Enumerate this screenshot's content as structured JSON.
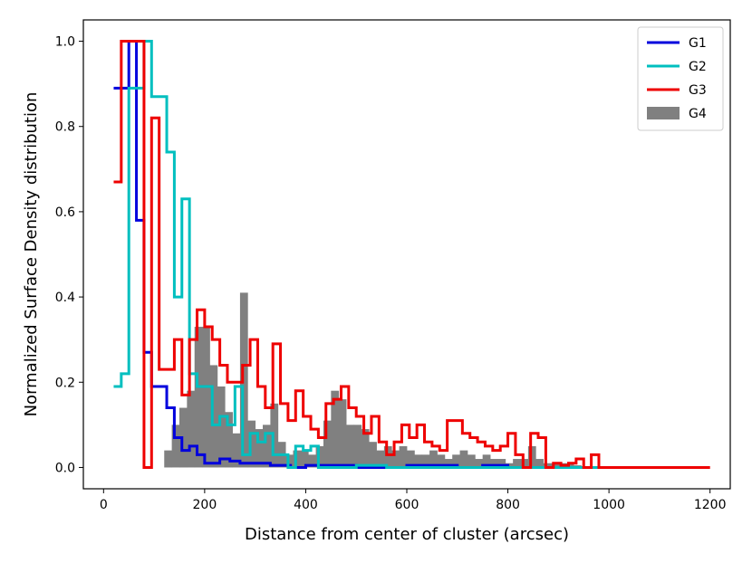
{
  "chart_data": {
    "type": "line",
    "title": "",
    "xlabel": "Distance from center of cluster (arcsec)",
    "ylabel": "Normalized Surface Density distribution",
    "xlim": [
      -40,
      1240
    ],
    "ylim": [
      -0.05,
      1.05
    ],
    "xticks": [
      0,
      200,
      400,
      600,
      800,
      1000,
      1200
    ],
    "xtick_labels": [
      "0",
      "200",
      "400",
      "600",
      "800",
      "1000",
      "1200"
    ],
    "yticks": [
      0.0,
      0.2,
      0.4,
      0.6,
      0.8,
      1.0
    ],
    "ytick_labels": [
      "0.0",
      "0.2",
      "0.4",
      "0.6",
      "0.8",
      "1.0"
    ],
    "grid": false,
    "legend_position": "top-right",
    "series": [
      {
        "name": "G1",
        "color": "#0000dd",
        "style": "step",
        "x": [
          20,
          35,
          50,
          65,
          80,
          95,
          110,
          125,
          140,
          155,
          170,
          185,
          200,
          215,
          230,
          250,
          270,
          290,
          310,
          330,
          350,
          370,
          400,
          450,
          500,
          550,
          600,
          650,
          700,
          750,
          800,
          850,
          900,
          950,
          1000
        ],
        "y": [
          0.89,
          0.89,
          1.0,
          0.58,
          0.27,
          0.19,
          0.19,
          0.14,
          0.07,
          0.04,
          0.05,
          0.03,
          0.01,
          0.01,
          0.02,
          0.015,
          0.01,
          0.01,
          0.01,
          0.005,
          0.005,
          0.0,
          0.005,
          0.005,
          0.0,
          0.0,
          0.005,
          0.005,
          0.0,
          0.005,
          0.0,
          0.0,
          0.0,
          0.0,
          0.0
        ]
      },
      {
        "name": "G2",
        "color": "#00bfbf",
        "style": "step",
        "x": [
          20,
          35,
          50,
          65,
          80,
          95,
          110,
          125,
          140,
          155,
          170,
          185,
          200,
          215,
          230,
          245,
          260,
          275,
          290,
          305,
          320,
          335,
          350,
          365,
          380,
          395,
          410,
          425,
          440,
          460,
          480,
          500,
          520,
          540,
          560,
          580,
          600,
          620,
          640,
          660,
          680,
          700,
          720,
          740,
          760,
          780,
          800,
          820,
          840,
          860,
          880,
          900,
          920,
          940,
          960,
          980,
          1000
        ],
        "y": [
          0.19,
          0.22,
          0.89,
          0.89,
          1.0,
          0.87,
          0.87,
          0.74,
          0.4,
          0.63,
          0.22,
          0.19,
          0.19,
          0.1,
          0.12,
          0.1,
          0.19,
          0.03,
          0.08,
          0.06,
          0.08,
          0.03,
          0.03,
          0.0,
          0.05,
          0.04,
          0.05,
          0.0,
          0.0,
          0.0,
          0.0,
          0.005,
          0.005,
          0.005,
          0.0,
          0.0,
          0.0,
          0.0,
          0.0,
          0.0,
          0.0,
          0.0,
          0.0,
          0.0,
          0.0,
          0.0,
          0.0,
          0.0,
          0.0,
          0.0,
          0.0,
          0.0,
          0.0,
          0.0,
          0.0,
          0.0,
          0.0
        ]
      },
      {
        "name": "G3",
        "color": "#ee0000",
        "style": "step",
        "x": [
          20,
          35,
          50,
          65,
          80,
          95,
          110,
          125,
          140,
          155,
          170,
          185,
          200,
          215,
          230,
          245,
          260,
          275,
          290,
          305,
          320,
          335,
          350,
          365,
          380,
          395,
          410,
          425,
          440,
          455,
          470,
          485,
          500,
          515,
          530,
          545,
          560,
          575,
          590,
          605,
          620,
          635,
          650,
          665,
          680,
          695,
          710,
          725,
          740,
          755,
          770,
          785,
          800,
          815,
          830,
          845,
          860,
          875,
          890,
          905,
          920,
          935,
          950,
          965,
          980,
          995,
          1010,
          1200
        ],
        "y": [
          0.67,
          1.0,
          1.0,
          1.0,
          0.0,
          0.82,
          0.23,
          0.23,
          0.3,
          0.17,
          0.3,
          0.37,
          0.33,
          0.3,
          0.24,
          0.2,
          0.2,
          0.24,
          0.3,
          0.19,
          0.14,
          0.29,
          0.15,
          0.11,
          0.18,
          0.12,
          0.09,
          0.07,
          0.15,
          0.16,
          0.19,
          0.14,
          0.12,
          0.08,
          0.12,
          0.06,
          0.03,
          0.06,
          0.1,
          0.07,
          0.1,
          0.06,
          0.05,
          0.04,
          0.11,
          0.11,
          0.08,
          0.07,
          0.06,
          0.05,
          0.04,
          0.05,
          0.08,
          0.03,
          0.0,
          0.08,
          0.07,
          0.0,
          0.01,
          0.005,
          0.01,
          0.02,
          0.0,
          0.03,
          0.0,
          0.0,
          0.0,
          0.0
        ]
      },
      {
        "name": "G4",
        "color": "#808080",
        "style": "bar",
        "bin_width": 15,
        "x": [
          120,
          135,
          150,
          165,
          180,
          195,
          210,
          225,
          240,
          255,
          270,
          285,
          300,
          315,
          330,
          345,
          360,
          375,
          390,
          405,
          420,
          435,
          450,
          465,
          480,
          495,
          510,
          525,
          540,
          555,
          570,
          585,
          600,
          615,
          630,
          645,
          660,
          675,
          690,
          705,
          720,
          735,
          750,
          765,
          780,
          795,
          810,
          825,
          840,
          855,
          870,
          885,
          900,
          915,
          930
        ],
        "y": [
          0.04,
          0.1,
          0.14,
          0.18,
          0.33,
          0.33,
          0.24,
          0.19,
          0.13,
          0.08,
          0.41,
          0.11,
          0.09,
          0.1,
          0.15,
          0.06,
          0.03,
          0.04,
          0.04,
          0.03,
          0.05,
          0.11,
          0.18,
          0.16,
          0.1,
          0.1,
          0.09,
          0.06,
          0.04,
          0.05,
          0.04,
          0.05,
          0.04,
          0.03,
          0.03,
          0.04,
          0.03,
          0.02,
          0.03,
          0.04,
          0.03,
          0.02,
          0.03,
          0.02,
          0.02,
          0.01,
          0.02,
          0.02,
          0.05,
          0.02,
          0.01,
          0.01,
          0.01,
          0.01,
          0.005
        ]
      }
    ]
  }
}
